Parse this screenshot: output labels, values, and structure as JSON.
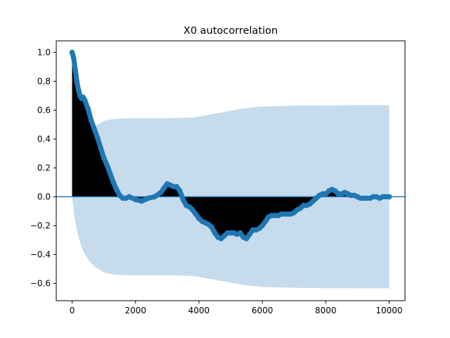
{
  "chart_data": {
    "type": "area",
    "title": "X0 autocorrelation",
    "xlabel": "",
    "ylabel": "",
    "xlim": [
      -500,
      10500
    ],
    "ylim": [
      -0.72,
      1.08
    ],
    "xticks": [
      0,
      2000,
      4000,
      6000,
      8000,
      10000
    ],
    "xtick_labels": [
      "0",
      "2000",
      "4000",
      "6000",
      "8000",
      "10000"
    ],
    "yticks": [
      -0.6,
      -0.4,
      -0.2,
      0.0,
      0.2,
      0.4,
      0.6,
      0.8,
      1.0
    ],
    "ytick_labels": [
      "−0.6",
      "−0.4",
      "−0.2",
      "0.0",
      "0.2",
      "0.4",
      "0.6",
      "0.8",
      "1.0"
    ],
    "grid": false,
    "legend": "none",
    "colors": {
      "acf_marker": "#1f77b4",
      "stem_fill": "#000000",
      "confidence_band": "#c6dcec",
      "zero_line": "#1f77b4"
    },
    "series": [
      {
        "role": "autocorrelation",
        "x": [
          0,
          50,
          100,
          150,
          200,
          250,
          300,
          350,
          400,
          500,
          600,
          700,
          800,
          900,
          1000,
          1100,
          1200,
          1300,
          1400,
          1500,
          1600,
          1700,
          1800,
          2000,
          2200,
          2400,
          2600,
          2800,
          2900,
          3000,
          3100,
          3200,
          3300,
          3400,
          3500,
          3600,
          3700,
          3800,
          3900,
          4000,
          4100,
          4200,
          4300,
          4400,
          4500,
          4600,
          4700,
          4800,
          4900,
          5000,
          5100,
          5200,
          5300,
          5400,
          5500,
          5600,
          5700,
          5800,
          5900,
          6000,
          6100,
          6200,
          6300,
          6400,
          6500,
          6600,
          6700,
          6800,
          6900,
          7000,
          7100,
          7200,
          7300,
          7400,
          7500,
          7600,
          7700,
          7800,
          7900,
          8000,
          8100,
          8200,
          8300,
          8400,
          8500,
          8600,
          8700,
          8800,
          8900,
          9000,
          9100,
          9200,
          9300,
          9400,
          9500,
          9600,
          9700,
          9800,
          9900,
          10000
        ],
        "y": [
          1.0,
          0.96,
          0.88,
          0.8,
          0.74,
          0.7,
          0.68,
          0.69,
          0.67,
          0.61,
          0.53,
          0.47,
          0.41,
          0.34,
          0.27,
          0.22,
          0.16,
          0.1,
          0.05,
          0.01,
          -0.01,
          -0.01,
          0.0,
          -0.02,
          -0.03,
          -0.01,
          0.0,
          0.03,
          0.06,
          0.09,
          0.08,
          0.07,
          0.07,
          0.04,
          -0.02,
          -0.06,
          -0.07,
          -0.09,
          -0.12,
          -0.15,
          -0.17,
          -0.18,
          -0.19,
          -0.21,
          -0.25,
          -0.28,
          -0.29,
          -0.27,
          -0.25,
          -0.25,
          -0.25,
          -0.26,
          -0.25,
          -0.28,
          -0.29,
          -0.26,
          -0.23,
          -0.23,
          -0.22,
          -0.2,
          -0.17,
          -0.14,
          -0.13,
          -0.13,
          -0.13,
          -0.12,
          -0.12,
          -0.12,
          -0.12,
          -0.11,
          -0.09,
          -0.08,
          -0.06,
          -0.06,
          -0.05,
          -0.03,
          -0.01,
          0.01,
          0.02,
          0.02,
          0.04,
          0.05,
          0.04,
          0.02,
          0.02,
          0.03,
          0.02,
          0.01,
          0.01,
          0.0,
          -0.01,
          -0.01,
          -0.01,
          -0.01,
          0.0,
          0.0,
          -0.01,
          0.0,
          0.0,
          0.0
        ]
      },
      {
        "role": "confidence_band_upper",
        "x": [
          0,
          25,
          50,
          100,
          200,
          300,
          400,
          500,
          600,
          700,
          800,
          900,
          1000,
          1200,
          1400,
          1600,
          2000,
          3000,
          3800,
          4000,
          4500,
          5000,
          5500,
          6000,
          6500,
          7000,
          8000,
          9000,
          10000
        ],
        "y": [
          0.0,
          0.05,
          0.1,
          0.18,
          0.28,
          0.35,
          0.4,
          0.43,
          0.46,
          0.48,
          0.5,
          0.51,
          0.525,
          0.535,
          0.54,
          0.543,
          0.545,
          0.545,
          0.548,
          0.555,
          0.575,
          0.595,
          0.615,
          0.625,
          0.628,
          0.631,
          0.633,
          0.634,
          0.634
        ]
      }
    ]
  }
}
